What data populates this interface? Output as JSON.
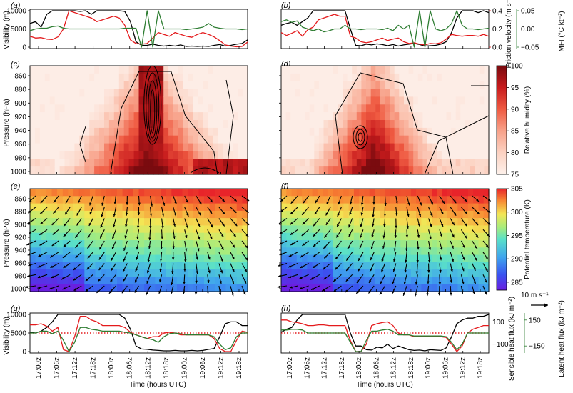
{
  "chart_data": [
    {
      "panel": "(a)",
      "type": "line",
      "ylabel": "Visibility (m)",
      "yticks": [
        0,
        5000,
        10000
      ],
      "right_axis_1": {
        "label": "Friction velocity (m s⁻¹)",
        "ticks": [
          "0.0",
          "0.2",
          "0.4"
        ],
        "color": "#e41a1c"
      },
      "right_axis_2": {
        "label": "MFI (°C kt⁻²)",
        "ticks": [
          "−0.05",
          "0.00",
          "0.05"
        ],
        "color": "#2e7d32"
      },
      "series": [
        {
          "color": "#000000",
          "values": [
            6500,
            7000,
            5500,
            9000,
            10000,
            10000,
            10000,
            10000,
            10000,
            9800,
            10000,
            9000,
            10000,
            10000,
            10000,
            10000,
            10000,
            9800,
            7000,
            1500,
            500,
            500,
            800,
            500,
            300,
            500,
            300,
            600,
            200,
            300,
            200,
            300,
            200,
            500,
            700,
            300,
            500,
            800,
            1000,
            2000
          ]
        },
        {
          "color": "#e41a1c",
          "values": [
            3000,
            2500,
            2600,
            2200,
            2100,
            2800,
            5000,
            10000,
            9500,
            9000,
            8500,
            8000,
            7000,
            7500,
            8000,
            8500,
            8000,
            6000,
            2000,
            1000,
            800,
            1000,
            2500,
            4000,
            3500,
            3000,
            4000,
            3500,
            3000,
            2700,
            3500,
            4000,
            3500,
            2800,
            1800,
            600,
            300,
            100,
            200,
            1400
          ]
        },
        {
          "color": "#2e7d32",
          "values": [
            4500,
            5000,
            5200,
            5200,
            5600,
            5800,
            5200,
            5000,
            5000,
            5000,
            5000,
            5000,
            5000,
            5000,
            5000,
            5000,
            5000,
            5200,
            5200,
            5200,
            0,
            10000,
            0,
            10000,
            5000,
            5000,
            5000,
            5000,
            4800,
            5000,
            5200,
            5500,
            6500,
            5500,
            5200,
            5000,
            5000,
            5000,
            4800,
            5000
          ]
        }
      ]
    },
    {
      "panel": "(b)",
      "type": "line",
      "series": [
        {
          "color": "#000000",
          "values": [
            6000,
            6500,
            6800,
            6000,
            7000,
            8000,
            10000,
            10000,
            10000,
            10000,
            10000,
            10000,
            10000,
            5000,
            500,
            400,
            800,
            600,
            900,
            700,
            400,
            700,
            300,
            600,
            800,
            1000,
            700,
            300,
            400,
            500,
            800,
            1500,
            4000,
            8000,
            10000,
            10000,
            10000,
            9500,
            10000,
            9500
          ]
        },
        {
          "color": "#e41a1c",
          "values": [
            4000,
            3200,
            3800,
            4500,
            3000,
            4800,
            5500,
            7500,
            8000,
            8500,
            9000,
            8500,
            8500,
            3000,
            2500,
            1500,
            1200,
            1500,
            2000,
            2500,
            1800,
            2200,
            2500,
            1500,
            1000,
            1200,
            800,
            600,
            1000,
            900,
            1200,
            2200,
            3500,
            3200,
            3000,
            3200,
            3200,
            3000,
            3500,
            3000
          ]
        },
        {
          "color": "#2e7d32",
          "values": [
            7000,
            7500,
            6800,
            7200,
            5500,
            5000,
            4500,
            5000,
            4200,
            4500,
            5000,
            5000,
            6000,
            5000,
            5000,
            4800,
            5000,
            5000,
            5000,
            4800,
            5200,
            4500,
            6000,
            5000,
            6000,
            0,
            10000,
            0,
            10000,
            5000,
            4500,
            5000,
            6500,
            10000,
            6000,
            5000,
            5000,
            4800,
            5000,
            5200
          ]
        }
      ]
    },
    {
      "panel": "(c)",
      "type": "heatmap",
      "ylabel": "Pressure (hPa)",
      "yticks": [
        860,
        880,
        900,
        920,
        940,
        960,
        980,
        1000
      ],
      "colorbar": {
        "label": "Relative humidity (%)",
        "ticks": [
          75,
          80,
          85,
          90,
          95,
          100
        ],
        "range": [
          75,
          100
        ]
      }
    },
    {
      "panel": "(d)",
      "type": "heatmap"
    },
    {
      "panel": "(e)",
      "type": "heatmap",
      "ylabel": "Pressure (hPa)",
      "yticks": [
        860,
        880,
        900,
        920,
        940,
        960,
        980,
        1000
      ],
      "colorbar": {
        "label": "Potential temperature (K)",
        "ticks": [
          285,
          290,
          295,
          300,
          305
        ],
        "range": [
          283,
          305
        ]
      },
      "wind_key": "10 m s⁻¹"
    },
    {
      "panel": "(f)",
      "type": "heatmap"
    },
    {
      "panel": "(g)",
      "type": "line",
      "ylabel": "Visibility (m)",
      "yticks": [
        0,
        5000,
        10000
      ],
      "right_axis_1": {
        "label": "Sensible heat flux (kJ m⁻²)",
        "ticks": [
          "100",
          "−100"
        ],
        "color": "#e41a1c"
      },
      "right_axis_2": {
        "label": "Latent heat flux (kJ m⁻²)",
        "ticks": [
          "150",
          "−150"
        ],
        "color": "#2e7d32"
      },
      "series": [
        {
          "color": "#000000",
          "values": [
            5200,
            5000,
            5500,
            6500,
            8000,
            10000,
            10000,
            10000,
            10000,
            10000,
            10000,
            10000,
            10000,
            10000,
            10000,
            10000,
            10000,
            9000,
            6000,
            1500,
            700,
            600,
            400,
            300,
            200,
            200,
            300,
            200,
            200,
            300,
            200,
            300,
            600,
            800,
            4000,
            7500,
            8000,
            8000,
            7000,
            7000
          ]
        },
        {
          "color": "#e41a1c",
          "values": [
            7200,
            7200,
            7500,
            6800,
            5500,
            6500,
            500,
            0,
            4000,
            9500,
            9500,
            8500,
            8000,
            7000,
            7000,
            7000,
            7000,
            6500,
            5200,
            4500,
            4000,
            3500,
            4000,
            4000,
            5000,
            5200,
            5000,
            4500,
            4500,
            4500,
            4500,
            4500,
            4500,
            3500,
            800,
            0,
            0,
            3000,
            5500,
            5200
          ]
        },
        {
          "color": "#2e7d32",
          "values": [
            5000,
            5000,
            5500,
            5500,
            4800,
            5500,
            3000,
            0,
            2500,
            6500,
            6500,
            6000,
            5800,
            5500,
            5500,
            5500,
            5500,
            5200,
            5000,
            4500,
            4000,
            3500,
            3200,
            2500,
            4000,
            4800,
            5000,
            4800,
            4500,
            4500,
            4500,
            4500,
            4500,
            4000,
            2000,
            500,
            1000,
            4000,
            5000,
            5000
          ]
        }
      ],
      "reference_line": {
        "color": "#e41a1c",
        "value": 5000,
        "style": "dotted"
      }
    },
    {
      "panel": "(h)",
      "type": "line",
      "series": [
        {
          "color": "#000000",
          "values": [
            5200,
            6000,
            6500,
            8500,
            10000,
            10000,
            10000,
            10000,
            10000,
            10000,
            10000,
            10000,
            10000,
            5000,
            1500,
            1500,
            500,
            400,
            1200,
            1000,
            2000,
            800,
            1500,
            1000,
            500,
            300,
            400,
            200,
            500,
            400,
            300,
            1000,
            4000,
            7500,
            8500,
            9000,
            9000,
            9500,
            9500,
            10000
          ]
        },
        {
          "color": "#e41a1c",
          "values": [
            8500,
            8500,
            8000,
            7800,
            7500,
            7000,
            7000,
            7200,
            7200,
            7000,
            7000,
            7000,
            7000,
            3000,
            0,
            0,
            2000,
            7000,
            7500,
            7800,
            8000,
            7000,
            5000,
            4500,
            4500,
            4000,
            4000,
            4000,
            4000,
            4000,
            4000,
            3800,
            2000,
            0,
            1500,
            5000,
            6000,
            6500,
            7000,
            7000
          ]
        },
        {
          "color": "#2e7d32",
          "values": [
            5800,
            5800,
            6000,
            6000,
            5800,
            5000,
            5000,
            5000,
            5000,
            5000,
            5000,
            5000,
            5000,
            2500,
            0,
            0,
            3000,
            5500,
            5500,
            5800,
            6000,
            5500,
            4500,
            4500,
            4500,
            4200,
            4200,
            4200,
            4200,
            4200,
            4200,
            4000,
            2500,
            500,
            2000,
            5000,
            5000,
            5000,
            5000,
            5000
          ]
        }
      ],
      "reference_line": {
        "color": "#e41a1c",
        "value": 5000,
        "style": "dotted"
      }
    }
  ],
  "xaxis": {
    "label": "Time (hours UTC)",
    "ticks_left": [
      "17:00z",
      "17:06z",
      "17:12z",
      "17:18z",
      "18:00z",
      "18:06z",
      "18:12z",
      "18:18z",
      "19:00z",
      "19:06z",
      "19:12z",
      "19:18z"
    ],
    "ticks_right": [
      "17:00z",
      "17:06z",
      "17:12z",
      "17:18z",
      "18:00z",
      "18:06z",
      "18:12z",
      "18:18z",
      "19:00z",
      "19:06z",
      "19:12z",
      "19:18z"
    ]
  },
  "colors": {
    "black": "#000000",
    "red": "#e41a1c",
    "green": "#2e7d32",
    "dashed_ref": "#6abf69"
  }
}
